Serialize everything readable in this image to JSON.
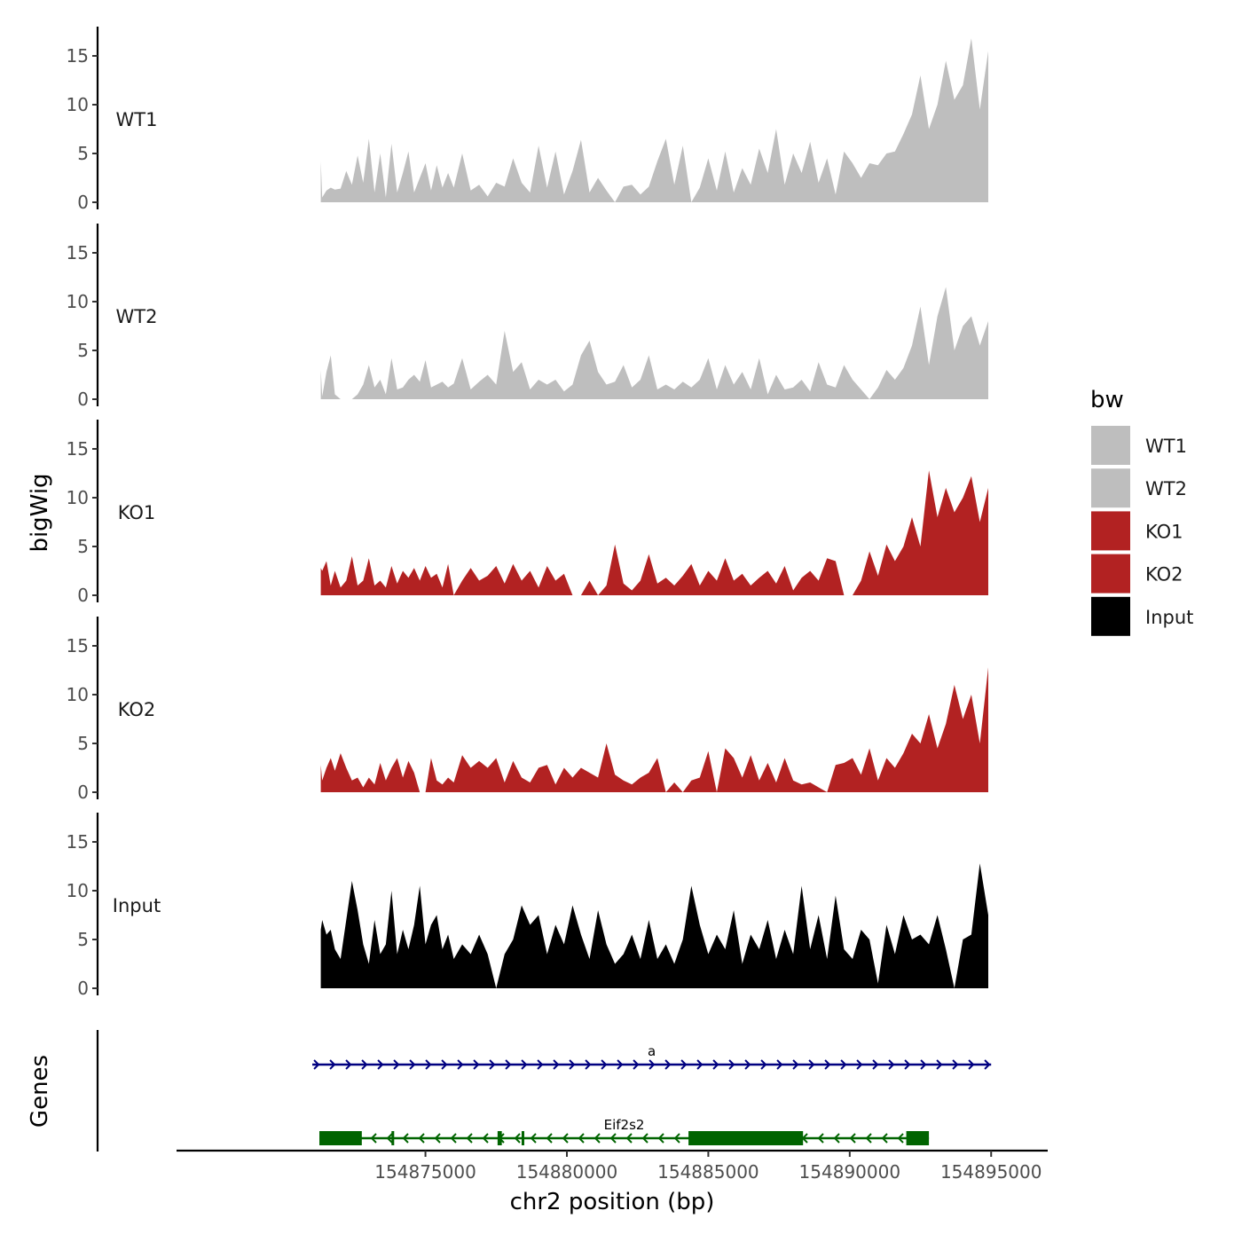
{
  "chart_data": {
    "type": "area",
    "title": "",
    "xlabel": "chr2 position (bp)",
    "ylabel": "bigWig",
    "genes_label": "Genes",
    "xlim": [
      154866200,
      154897000
    ],
    "x_ticks": [
      154875000,
      154880000,
      154885000,
      154890000,
      154895000
    ],
    "x_tick_labels": [
      "154875000",
      "154880000",
      "154885000",
      "154890000",
      "154895000"
    ],
    "ylim": [
      0,
      17.5
    ],
    "y_ticks": [
      0,
      5,
      10,
      15
    ],
    "y_tick_labels": [
      "0",
      "5",
      "10",
      "15"
    ],
    "legend": {
      "title": "bw",
      "placement": "right",
      "entries": [
        {
          "name": "WT1",
          "color": "#bebebe"
        },
        {
          "name": "WT2",
          "color": "#bebebe"
        },
        {
          "name": "KO1",
          "color": "#b22222"
        },
        {
          "name": "KO2",
          "color": "#b22222"
        },
        {
          "name": "Input",
          "color": "#000000"
        }
      ]
    },
    "series": [
      {
        "name": "WT1",
        "color": "#bebebe",
        "x": [
          154871300,
          154871350,
          154871500,
          154871650,
          154871800,
          154872000,
          154872200,
          154872400,
          154872600,
          154872800,
          154873000,
          154873200,
          154873400,
          154873600,
          154873800,
          154874000,
          154874200,
          154874400,
          154874600,
          154874800,
          154875000,
          154875200,
          154875400,
          154875600,
          154875800,
          154876000,
          154876300,
          154876600,
          154876900,
          154877200,
          154877500,
          154877800,
          154878100,
          154878400,
          154878700,
          154879000,
          154879300,
          154879600,
          154879900,
          154880200,
          154880500,
          154880800,
          154881100,
          154881400,
          154881700,
          154882000,
          154882300,
          154882600,
          154882900,
          154883200,
          154883500,
          154883800,
          154884100,
          154884400,
          154884700,
          154885000,
          154885300,
          154885600,
          154885900,
          154886200,
          154886500,
          154886800,
          154887100,
          154887400,
          154887700,
          154888000,
          154888300,
          154888600,
          154888900,
          154889200,
          154889500,
          154889800,
          154890100,
          154890400,
          154890700,
          154891000,
          154891300,
          154891600,
          154891900,
          154892200,
          154892500,
          154892800,
          154893100,
          154893400,
          154893700,
          154894000,
          154894300,
          154894600,
          154894900
        ],
        "values": [
          4.2,
          0.5,
          1.2,
          1.5,
          1.3,
          1.4,
          3.2,
          1.8,
          4.8,
          2.0,
          6.5,
          1.0,
          5.0,
          0.5,
          6.0,
          1.0,
          3.0,
          5.2,
          1.0,
          2.5,
          4.0,
          1.2,
          3.8,
          1.5,
          3.0,
          1.5,
          5.0,
          1.2,
          1.8,
          0.6,
          2.0,
          1.6,
          4.5,
          2.0,
          1.0,
          5.8,
          1.5,
          5.2,
          0.8,
          3.2,
          6.4,
          1.0,
          2.5,
          1.2,
          0.0,
          1.6,
          1.8,
          0.8,
          1.6,
          4.2,
          6.5,
          1.8,
          5.8,
          0.0,
          1.5,
          4.5,
          1.2,
          5.2,
          1.0,
          3.5,
          1.8,
          5.5,
          3.0,
          7.5,
          1.8,
          5.0,
          3.0,
          6.2,
          2.0,
          4.5,
          0.8,
          5.2,
          4.0,
          2.5,
          4.0,
          3.8,
          5.0,
          5.2,
          7.0,
          9.0,
          13.0,
          7.5,
          10.0,
          14.5,
          10.5,
          12.0,
          16.8,
          9.5,
          15.5
        ]
      },
      {
        "name": "WT2",
        "color": "#bebebe",
        "x": [
          154871300,
          154871350,
          154871500,
          154871650,
          154871800,
          154872000,
          154872200,
          154872400,
          154872600,
          154872800,
          154873000,
          154873200,
          154873400,
          154873600,
          154873800,
          154874000,
          154874200,
          154874400,
          154874600,
          154874800,
          154875000,
          154875200,
          154875400,
          154875600,
          154875800,
          154876000,
          154876300,
          154876600,
          154876900,
          154877200,
          154877500,
          154877800,
          154878100,
          154878400,
          154878700,
          154879000,
          154879300,
          154879600,
          154879900,
          154880200,
          154880500,
          154880800,
          154881100,
          154881400,
          154881700,
          154882000,
          154882300,
          154882600,
          154882900,
          154883200,
          154883500,
          154883800,
          154884100,
          154884400,
          154884700,
          154885000,
          154885300,
          154885600,
          154885900,
          154886200,
          154886500,
          154886800,
          154887100,
          154887400,
          154887700,
          154888000,
          154888300,
          154888600,
          154888900,
          154889200,
          154889500,
          154889800,
          154890100,
          154890400,
          154890700,
          154891000,
          154891300,
          154891600,
          154891900,
          154892200,
          154892500,
          154892800,
          154893100,
          154893400,
          154893700,
          154894000,
          154894300,
          154894600,
          154894900
        ],
        "values": [
          3.0,
          0.3,
          2.8,
          4.5,
          0.5,
          0.0,
          0.0,
          0.0,
          0.5,
          1.5,
          3.5,
          1.2,
          2.0,
          0.5,
          4.2,
          1.0,
          1.2,
          2.0,
          2.5,
          1.8,
          4.0,
          1.2,
          1.5,
          1.8,
          1.2,
          1.6,
          4.2,
          1.0,
          1.8,
          2.5,
          1.5,
          7.0,
          2.8,
          3.8,
          1.0,
          2.0,
          1.5,
          2.0,
          0.8,
          1.5,
          4.5,
          6.0,
          2.8,
          1.5,
          1.8,
          3.5,
          1.2,
          2.0,
          4.5,
          1.0,
          1.5,
          1.0,
          1.8,
          1.2,
          2.0,
          4.2,
          1.0,
          3.5,
          1.5,
          2.8,
          1.0,
          4.2,
          0.5,
          2.5,
          1.0,
          1.2,
          2.0,
          0.8,
          3.8,
          1.5,
          1.2,
          3.5,
          2.0,
          1.0,
          0.0,
          1.2,
          3.0,
          2.0,
          3.2,
          5.5,
          9.5,
          3.5,
          8.5,
          11.5,
          5.0,
          7.5,
          8.5,
          5.5,
          8.0
        ]
      },
      {
        "name": "KO1",
        "color": "#b22222",
        "x": [
          154871300,
          154871350,
          154871500,
          154871650,
          154871800,
          154872000,
          154872200,
          154872400,
          154872600,
          154872800,
          154873000,
          154873200,
          154873400,
          154873600,
          154873800,
          154874000,
          154874200,
          154874400,
          154874600,
          154874800,
          154875000,
          154875200,
          154875400,
          154875600,
          154875800,
          154876000,
          154876300,
          154876600,
          154876900,
          154877200,
          154877500,
          154877800,
          154878100,
          154878400,
          154878700,
          154879000,
          154879300,
          154879600,
          154879900,
          154880200,
          154880500,
          154880800,
          154881100,
          154881400,
          154881700,
          154882000,
          154882300,
          154882600,
          154882900,
          154883200,
          154883500,
          154883800,
          154884100,
          154884400,
          154884700,
          154885000,
          154885300,
          154885600,
          154885900,
          154886200,
          154886500,
          154886800,
          154887100,
          154887400,
          154887700,
          154888000,
          154888300,
          154888600,
          154888900,
          154889200,
          154889500,
          154889800,
          154890100,
          154890400,
          154890700,
          154891000,
          154891300,
          154891600,
          154891900,
          154892200,
          154892500,
          154892800,
          154893100,
          154893400,
          154893700,
          154894000,
          154894300,
          154894600,
          154894900
        ],
        "values": [
          2.8,
          2.5,
          3.5,
          1.0,
          2.5,
          0.8,
          1.5,
          4.0,
          1.0,
          1.5,
          3.8,
          1.0,
          1.5,
          0.8,
          3.0,
          1.2,
          2.5,
          1.8,
          2.8,
          1.5,
          3.0,
          1.8,
          2.2,
          0.8,
          3.2,
          0.0,
          1.5,
          2.8,
          1.5,
          2.0,
          3.0,
          1.2,
          3.2,
          1.5,
          2.5,
          0.8,
          3.0,
          1.5,
          2.2,
          0.0,
          0.0,
          1.5,
          0.0,
          1.0,
          5.2,
          1.2,
          0.5,
          1.5,
          4.2,
          1.2,
          1.8,
          1.0,
          2.0,
          3.2,
          1.0,
          2.5,
          1.5,
          3.8,
          1.5,
          2.2,
          1.0,
          1.8,
          2.5,
          1.2,
          3.0,
          0.5,
          1.8,
          2.5,
          1.5,
          3.8,
          3.5,
          0.0,
          0.0,
          1.5,
          4.5,
          2.0,
          5.2,
          3.5,
          5.0,
          8.0,
          5.0,
          12.8,
          8.0,
          11.0,
          8.5,
          10.0,
          12.2,
          7.5,
          11.0
        ]
      },
      {
        "name": "KO2",
        "color": "#b22222",
        "x": [
          154871300,
          154871350,
          154871500,
          154871650,
          154871800,
          154872000,
          154872200,
          154872400,
          154872600,
          154872800,
          154873000,
          154873200,
          154873400,
          154873600,
          154873800,
          154874000,
          154874200,
          154874400,
          154874600,
          154874800,
          154875000,
          154875200,
          154875400,
          154875600,
          154875800,
          154876000,
          154876300,
          154876600,
          154876900,
          154877200,
          154877500,
          154877800,
          154878100,
          154878400,
          154878700,
          154879000,
          154879300,
          154879600,
          154879900,
          154880200,
          154880500,
          154880800,
          154881100,
          154881400,
          154881700,
          154882000,
          154882300,
          154882600,
          154882900,
          154883200,
          154883500,
          154883800,
          154884100,
          154884400,
          154884700,
          154885000,
          154885300,
          154885600,
          154885900,
          154886200,
          154886500,
          154886800,
          154887100,
          154887400,
          154887700,
          154888000,
          154888300,
          154888600,
          154888900,
          154889200,
          154889500,
          154889800,
          154890100,
          154890400,
          154890700,
          154891000,
          154891300,
          154891600,
          154891900,
          154892200,
          154892500,
          154892800,
          154893100,
          154893400,
          154893700,
          154894000,
          154894300,
          154894600,
          154894900
        ],
        "values": [
          2.8,
          1.2,
          2.5,
          3.5,
          2.2,
          4.0,
          2.5,
          1.2,
          1.5,
          0.5,
          1.5,
          0.8,
          3.0,
          1.2,
          2.5,
          3.5,
          1.5,
          3.2,
          2.0,
          0.0,
          0.0,
          3.5,
          1.2,
          0.8,
          1.5,
          1.0,
          3.8,
          2.5,
          3.2,
          2.5,
          3.5,
          1.0,
          3.2,
          1.5,
          1.0,
          2.5,
          2.8,
          0.8,
          2.5,
          1.5,
          2.5,
          2.0,
          1.5,
          5.0,
          1.8,
          1.2,
          0.8,
          1.5,
          2.0,
          3.5,
          0.0,
          1.0,
          0.0,
          1.2,
          1.5,
          4.2,
          0.0,
          4.5,
          3.5,
          1.5,
          3.8,
          1.2,
          3.0,
          1.0,
          3.5,
          1.2,
          0.8,
          1.0,
          0.5,
          0.0,
          2.8,
          3.0,
          3.5,
          1.8,
          4.5,
          1.2,
          3.5,
          2.5,
          4.0,
          6.0,
          5.0,
          8.0,
          4.5,
          7.0,
          11.0,
          7.5,
          10.0,
          5.0,
          12.8
        ]
      },
      {
        "name": "Input",
        "color": "#000000",
        "x": [
          154871300,
          154871350,
          154871500,
          154871650,
          154871800,
          154872000,
          154872200,
          154872400,
          154872600,
          154872800,
          154873000,
          154873200,
          154873400,
          154873600,
          154873800,
          154874000,
          154874200,
          154874400,
          154874600,
          154874800,
          154875000,
          154875200,
          154875400,
          154875600,
          154875800,
          154876000,
          154876300,
          154876600,
          154876900,
          154877200,
          154877500,
          154877800,
          154878100,
          154878400,
          154878700,
          154879000,
          154879300,
          154879600,
          154879900,
          154880200,
          154880500,
          154880800,
          154881100,
          154881400,
          154881700,
          154882000,
          154882300,
          154882600,
          154882900,
          154883200,
          154883500,
          154883800,
          154884100,
          154884400,
          154884700,
          154885000,
          154885300,
          154885600,
          154885900,
          154886200,
          154886500,
          154886800,
          154887100,
          154887400,
          154887700,
          154888000,
          154888300,
          154888600,
          154888900,
          154889200,
          154889500,
          154889800,
          154890100,
          154890400,
          154890700,
          154891000,
          154891300,
          154891600,
          154891900,
          154892200,
          154892500,
          154892800,
          154893100,
          154893400,
          154893700,
          154894000,
          154894300,
          154894600,
          154894900
        ],
        "values": [
          6.0,
          7.0,
          5.5,
          6.0,
          4.0,
          3.0,
          7.0,
          11.0,
          8.0,
          4.5,
          2.5,
          7.0,
          3.5,
          4.5,
          10.0,
          3.5,
          6.0,
          4.0,
          6.5,
          10.5,
          4.5,
          6.5,
          7.5,
          4.0,
          5.5,
          3.0,
          4.5,
          3.5,
          5.5,
          3.5,
          0.0,
          3.5,
          5.0,
          8.5,
          6.5,
          7.5,
          3.5,
          6.5,
          4.5,
          8.5,
          5.5,
          3.0,
          8.0,
          4.5,
          2.5,
          3.5,
          5.5,
          3.0,
          7.0,
          3.0,
          4.5,
          2.5,
          5.0,
          10.5,
          6.5,
          3.5,
          5.5,
          4.0,
          8.0,
          2.5,
          5.5,
          4.0,
          7.0,
          3.0,
          6.0,
          3.5,
          10.5,
          4.0,
          7.5,
          3.0,
          9.5,
          4.0,
          3.0,
          6.0,
          5.0,
          0.5,
          6.5,
          3.5,
          7.5,
          5.0,
          5.5,
          4.5,
          7.5,
          4.0,
          0.0,
          5.0,
          5.5,
          12.8,
          7.5
        ]
      }
    ],
    "genes": [
      {
        "name": "a",
        "color": "#000080",
        "strand": "+",
        "start": 154871000,
        "end": 154895000,
        "exons": []
      },
      {
        "name": "Eif2s2",
        "color": "#006400",
        "strand": "-",
        "start": 154871250,
        "end": 154892800,
        "exons": [
          [
            154871250,
            154872750
          ],
          [
            154873800,
            154873850
          ],
          [
            154877550,
            154877700
          ],
          [
            154878400,
            154878450
          ],
          [
            154884300,
            154888350
          ],
          [
            154892000,
            154892800
          ]
        ]
      }
    ]
  }
}
